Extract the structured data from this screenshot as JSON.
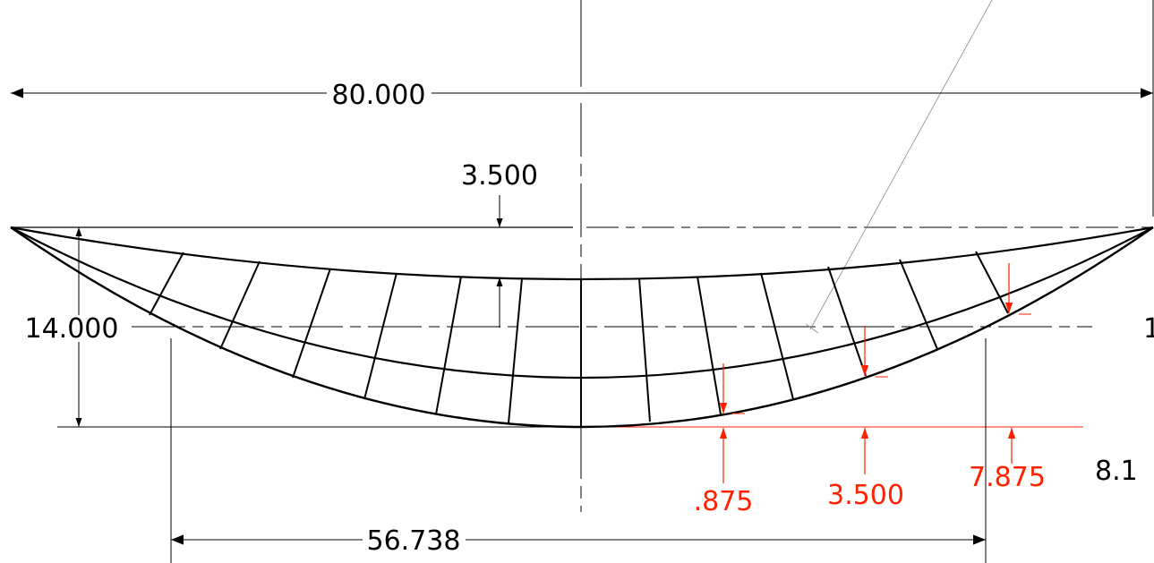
{
  "colors": {
    "line": "#000000",
    "annotation": "#ff2200",
    "leader": "#8a8a8a"
  },
  "dimensions": {
    "overall_width": "80.000",
    "inner_depth": "3.500",
    "total_depth": "14.000",
    "chord_width": "56.738",
    "right_cut": "8.1",
    "right_edge": "1"
  },
  "annotations": {
    "offset_a": ".875",
    "offset_b": "3.500",
    "offset_c": "7.875"
  }
}
